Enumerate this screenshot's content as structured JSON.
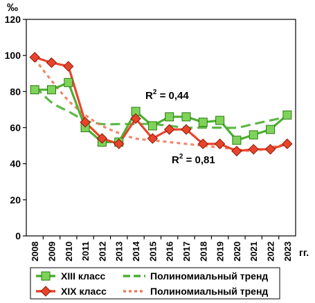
{
  "chart_data": {
    "type": "line",
    "ylabel": "‰",
    "x_unit": "гг.",
    "ylim": [
      0,
      120
    ],
    "ytick_step": 20,
    "categories": [
      "2008",
      "2009",
      "2010",
      "2011",
      "2012",
      "2013",
      "2014",
      "2015",
      "2016",
      "2017",
      "2018",
      "2019",
      "2020",
      "2021",
      "2022",
      "2023"
    ],
    "grid": false,
    "legend_position": "bottom",
    "series": [
      {
        "name": "XIII класс",
        "values": [
          81,
          81,
          85,
          60,
          52,
          52,
          69,
          61,
          66,
          66,
          63,
          64,
          53,
          56,
          59,
          67
        ],
        "color": "#4caf32",
        "marker": "square",
        "trend": {
          "name": "Полиномиальный тренд",
          "values": [
            83,
            74,
            69,
            64,
            62,
            62,
            62,
            62,
            61,
            60,
            60,
            60,
            60,
            62,
            64,
            66
          ],
          "style": "dashed"
        },
        "r2_label": "R",
        "r2_sup": "2",
        "r2_value": " = 0,44"
      },
      {
        "name": "XIX класс",
        "values": [
          99,
          96,
          94,
          63,
          54,
          51,
          65,
          54,
          59,
          59,
          51,
          51,
          47,
          48,
          48,
          51
        ],
        "color": "#e8442c",
        "marker": "diamond",
        "trend": {
          "name": "Полиномиальный тренд",
          "values": [
            98,
            86,
            75,
            67,
            61,
            57,
            54,
            53,
            52,
            51,
            50,
            49,
            48,
            47,
            49,
            51
          ],
          "style": "dotted"
        },
        "r2_label": "R",
        "r2_sup": "2",
        "r2_value": " = 0,81"
      }
    ]
  }
}
